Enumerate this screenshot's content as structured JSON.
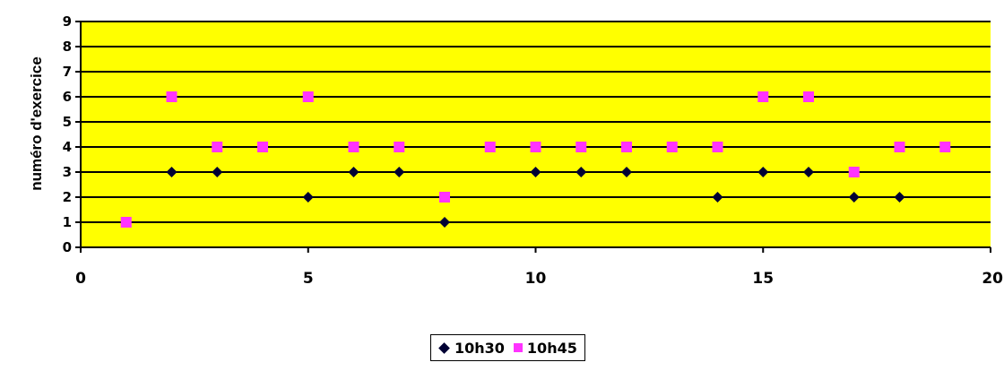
{
  "chart_data": {
    "type": "scatter",
    "title": "",
    "xlabel": "",
    "ylabel": "numéro d'exercice",
    "xlim": [
      0,
      20
    ],
    "ylim": [
      0,
      9
    ],
    "x_ticks": [
      0,
      5,
      10,
      15,
      20
    ],
    "y_ticks": [
      0,
      1,
      2,
      3,
      4,
      5,
      6,
      7,
      8,
      9
    ],
    "grid": "horizontal",
    "plot_background": "#ffff00",
    "legend_position": "bottom",
    "series": [
      {
        "name": "10h30",
        "marker": "diamond",
        "color": "#000033",
        "points": [
          [
            2,
            3
          ],
          [
            3,
            3
          ],
          [
            5,
            2
          ],
          [
            6,
            3
          ],
          [
            7,
            3
          ],
          [
            8,
            1
          ],
          [
            10,
            3
          ],
          [
            11,
            3
          ],
          [
            12,
            3
          ],
          [
            14,
            2
          ],
          [
            15,
            3
          ],
          [
            16,
            3
          ],
          [
            17,
            2
          ],
          [
            18,
            2
          ]
        ]
      },
      {
        "name": "10h45",
        "marker": "square",
        "color": "#ff33ff",
        "points": [
          [
            1,
            1
          ],
          [
            2,
            6
          ],
          [
            3,
            4
          ],
          [
            4,
            4
          ],
          [
            5,
            6
          ],
          [
            6,
            4
          ],
          [
            7,
            4
          ],
          [
            8,
            2
          ],
          [
            9,
            4
          ],
          [
            10,
            4
          ],
          [
            11,
            4
          ],
          [
            12,
            4
          ],
          [
            13,
            4
          ],
          [
            14,
            4
          ],
          [
            15,
            6
          ],
          [
            16,
            6
          ],
          [
            17,
            3
          ],
          [
            18,
            4
          ],
          [
            19,
            4
          ]
        ]
      }
    ]
  }
}
